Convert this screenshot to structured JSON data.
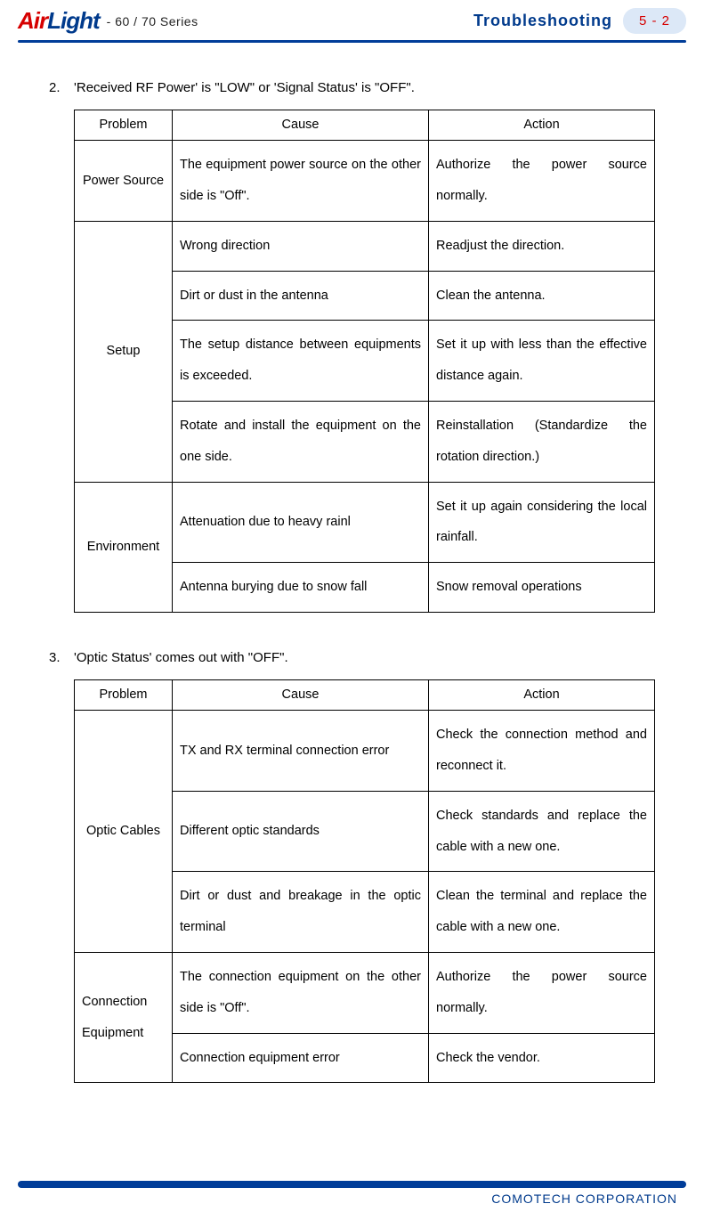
{
  "header": {
    "logo_part1": "Air",
    "logo_part2": "Light",
    "series": "- 60 / 70 Series",
    "title": "Troubleshooting",
    "page": "5 - 2"
  },
  "item2": {
    "num": "2.",
    "heading": "'Received RF Power' is \"LOW\" or 'Signal Status' is \"OFF\".",
    "cols": [
      "Problem",
      "Cause",
      "Action"
    ],
    "rows": [
      {
        "problem": "Power Source",
        "span": 1,
        "cause": "The equipment power source on the other side is \"Off\".",
        "action": "Authorize the power source normally."
      },
      {
        "problem": "Setup",
        "span": 4,
        "cause": "Wrong direction",
        "action": "Readjust the direction."
      },
      {
        "cause": "Dirt or dust in the antenna",
        "action": "Clean the antenna."
      },
      {
        "cause": "The setup distance between equipments is exceeded.",
        "action": "Set it up with less than the effective distance again."
      },
      {
        "cause": "Rotate and install the equipment on the one side.",
        "action": "Reinstallation (Standardize the rotation direction.)"
      },
      {
        "problem": "Environment",
        "span": 2,
        "cause": "Attenuation due to heavy rainl",
        "action": "Set it up again considering the local rainfall."
      },
      {
        "cause": "Antenna burying due to snow fall",
        "action": "Snow removal operations"
      }
    ]
  },
  "item3": {
    "num": "3.",
    "heading": "'Optic Status' comes out with \"OFF\".",
    "cols": [
      "Problem",
      "Cause",
      "Action"
    ],
    "rows": [
      {
        "problem": "Optic Cables",
        "span": 3,
        "cause": "TX and RX terminal connection error",
        "action": "Check the connection method and reconnect it."
      },
      {
        "cause": "Different optic standards",
        "action": "Check standards and replace the cable with a new one."
      },
      {
        "cause": "Dirt or dust and breakage in the optic terminal",
        "action": "Clean the terminal and replace the cable with a new one."
      },
      {
        "problem": "Connection Equipment",
        "span": 2,
        "cause": "The connection equipment on the other side is \"Off\".",
        "action": "Authorize the power source normally."
      },
      {
        "cause": "Connection equipment error",
        "action": "Check the vendor."
      }
    ]
  },
  "footer": "COMOTECH CORPORATION"
}
